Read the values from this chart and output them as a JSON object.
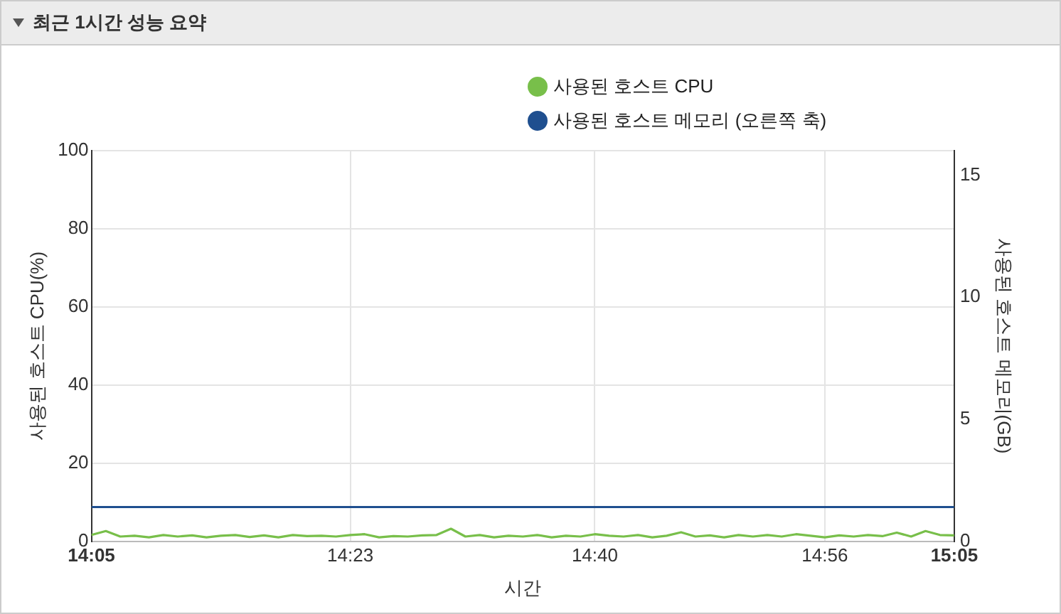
{
  "chart_data": {
    "type": "line",
    "title": "최근 1시간 성능 요약",
    "xlabel": "시간",
    "ylabel": "사용된 호스트 CPU(%)",
    "y2label": "사용된 호스트 메모리(GB)",
    "x": [
      14.0833,
      14.1,
      14.1167,
      14.1333,
      14.15,
      14.1667,
      14.1833,
      14.2,
      14.2167,
      14.2333,
      14.25,
      14.2667,
      14.2833,
      14.3,
      14.3167,
      14.3333,
      14.35,
      14.3667,
      14.3833,
      14.4,
      14.4167,
      14.4333,
      14.45,
      14.4667,
      14.4833,
      14.5,
      14.5167,
      14.5333,
      14.55,
      14.5667,
      14.5833,
      14.6,
      14.6167,
      14.6333,
      14.65,
      14.6667,
      14.6833,
      14.7,
      14.7167,
      14.7333,
      14.75,
      14.7667,
      14.7833,
      14.8,
      14.8167,
      14.8333,
      14.85,
      14.8667,
      14.8833,
      14.9,
      14.9167,
      14.9333,
      14.95,
      14.9667,
      14.9833,
      15.0,
      15.0167,
      15.0333,
      15.05,
      15.0667,
      15.0833
    ],
    "series": [
      {
        "name": "사용된 호스트 CPU",
        "color": "#78bf4a",
        "values": [
          1.6,
          2.6,
          1.2,
          1.4,
          1.0,
          1.6,
          1.2,
          1.5,
          1.0,
          1.4,
          1.6,
          1.1,
          1.5,
          1.0,
          1.6,
          1.3,
          1.4,
          1.2,
          1.6,
          1.8,
          1.0,
          1.3,
          1.2,
          1.5,
          1.6,
          3.2,
          1.2,
          1.6,
          1.0,
          1.4,
          1.2,
          1.6,
          1.0,
          1.4,
          1.2,
          1.8,
          1.4,
          1.2,
          1.6,
          1.0,
          1.4,
          2.3,
          1.2,
          1.5,
          1.0,
          1.6,
          1.2,
          1.6,
          1.2,
          1.8,
          1.4,
          1.0,
          1.5,
          1.2,
          1.6,
          1.3,
          2.2,
          1.2,
          2.6,
          1.6,
          1.5
        ]
      },
      {
        "name": "사용된 호스트 메모리 (오른쪽 축)",
        "color": "#1f4f8f",
        "axis": "y2",
        "values": [
          1.4,
          1.4,
          1.4,
          1.4,
          1.4,
          1.4,
          1.4,
          1.4,
          1.4,
          1.4,
          1.4,
          1.4,
          1.4,
          1.4,
          1.4,
          1.4,
          1.4,
          1.4,
          1.4,
          1.4,
          1.4,
          1.4,
          1.4,
          1.4,
          1.4,
          1.4,
          1.4,
          1.4,
          1.4,
          1.4,
          1.4,
          1.4,
          1.4,
          1.4,
          1.4,
          1.4,
          1.4,
          1.4,
          1.4,
          1.4,
          1.4,
          1.4,
          1.4,
          1.4,
          1.4,
          1.4,
          1.4,
          1.4,
          1.4,
          1.4,
          1.4,
          1.4,
          1.4,
          1.4,
          1.4,
          1.4,
          1.4,
          1.4,
          1.4,
          1.4,
          1.4
        ]
      }
    ],
    "xlim": [
      14.0833,
      15.0833
    ],
    "xticks": [
      {
        "value": 14.0833,
        "label": "14:05"
      },
      {
        "value": 14.3833,
        "label": "14:23"
      },
      {
        "value": 14.6667,
        "label": "14:40"
      },
      {
        "value": 14.9333,
        "label": "14:56"
      },
      {
        "value": 15.0833,
        "label": "15:05"
      }
    ],
    "ylim": [
      0,
      100
    ],
    "yticks": [
      0,
      20,
      40,
      60,
      80,
      100
    ],
    "y2lim": [
      0,
      16
    ],
    "y2ticks": [
      0,
      5,
      10,
      15
    ],
    "grid": true,
    "legend": "top",
    "marker": "none",
    "line_style": "solid"
  }
}
